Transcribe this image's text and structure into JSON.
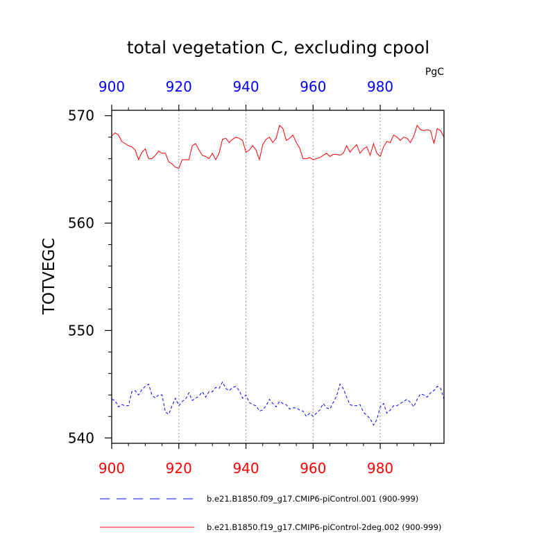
{
  "chart_data": {
    "type": "line",
    "title": "total vegetation C, excluding cpool",
    "units": "PgC",
    "ylabel": "TOTVEGC",
    "xlabel": "",
    "xlim": [
      900,
      999
    ],
    "ylim": [
      539.5,
      570.5
    ],
    "x_ticks": [
      900,
      920,
      940,
      960,
      980
    ],
    "x_tick_labels": [
      "900",
      "920",
      "940",
      "960",
      "980"
    ],
    "y_ticks": [
      540,
      550,
      560,
      570
    ],
    "y_tick_labels": [
      "540",
      "550",
      "560",
      "570"
    ],
    "grid": "vertical dotted at x ticks",
    "legend_position": "bottom",
    "colors": {
      "bottom_axis_labels": "#ff0000",
      "top_axis_labels": "#0000ff"
    },
    "series": [
      {
        "name": "b.e21.B1850.f09_g17.CMIP6-piControl.001 (900-999)",
        "color": "#0000ff",
        "dash": "dashed",
        "x": [
          900,
          901,
          902,
          903,
          904,
          905,
          906,
          907,
          908,
          909,
          910,
          911,
          912,
          913,
          914,
          915,
          916,
          917,
          918,
          919,
          920,
          921,
          922,
          923,
          924,
          925,
          926,
          927,
          928,
          929,
          930,
          931,
          932,
          933,
          934,
          935,
          936,
          937,
          938,
          939,
          940,
          941,
          942,
          943,
          944,
          945,
          946,
          947,
          948,
          949,
          950,
          951,
          952,
          953,
          954,
          955,
          956,
          957,
          958,
          959,
          960,
          961,
          962,
          963,
          964,
          965,
          966,
          967,
          968,
          969,
          970,
          971,
          972,
          973,
          974,
          975,
          976,
          977,
          978,
          979,
          980,
          981,
          982,
          983,
          984,
          985,
          986,
          987,
          988,
          989,
          990,
          991,
          992,
          993,
          994,
          995,
          996,
          997,
          998,
          999
        ],
        "y": [
          543.6,
          543.5,
          542.9,
          543.1,
          543.0,
          543.0,
          544.3,
          544.4,
          544.0,
          544.5,
          544.8,
          545.0,
          544.0,
          543.7,
          544.0,
          544.0,
          542.4,
          542.2,
          543.0,
          543.7,
          543.0,
          543.4,
          543.6,
          544.2,
          543.5,
          543.7,
          543.9,
          544.3,
          543.8,
          544.3,
          544.3,
          544.7,
          544.6,
          545.2,
          544.6,
          544.4,
          544.7,
          544.8,
          544.4,
          543.7,
          544.0,
          543.3,
          543.1,
          543.0,
          542.5,
          542.6,
          543.0,
          543.6,
          543.2,
          542.9,
          543.4,
          543.2,
          543.1,
          542.7,
          542.8,
          542.8,
          542.6,
          542.5,
          542.0,
          542.3,
          542.0,
          542.3,
          542.6,
          543.2,
          542.8,
          542.7,
          543.3,
          543.9,
          545.0,
          544.6,
          543.8,
          543.1,
          543.0,
          543.0,
          543.1,
          542.4,
          542.1,
          541.8,
          541.2,
          541.7,
          542.9,
          543.2,
          542.3,
          542.6,
          543.0,
          543.0,
          543.2,
          543.4,
          543.6,
          543.3,
          542.9,
          543.6,
          544.1,
          544.0,
          543.8,
          544.2,
          544.4,
          544.8,
          544.6,
          543.6
        ]
      },
      {
        "name": "b.e21.B1850.f19_g17.CMIP6-piControl-2deg.002 (900-999)",
        "color": "#ff0000",
        "dash": "solid",
        "x": [
          900,
          901,
          902,
          903,
          904,
          905,
          906,
          907,
          908,
          909,
          910,
          911,
          912,
          913,
          914,
          915,
          916,
          917,
          918,
          919,
          920,
          921,
          922,
          923,
          924,
          925,
          926,
          927,
          928,
          929,
          930,
          931,
          932,
          933,
          934,
          935,
          936,
          937,
          938,
          939,
          940,
          941,
          942,
          943,
          944,
          945,
          946,
          947,
          948,
          949,
          950,
          951,
          952,
          953,
          954,
          955,
          956,
          957,
          958,
          959,
          960,
          961,
          962,
          963,
          964,
          965,
          966,
          967,
          968,
          969,
          970,
          971,
          972,
          973,
          974,
          975,
          976,
          977,
          978,
          979,
          980,
          981,
          982,
          983,
          984,
          985,
          986,
          987,
          988,
          989,
          990,
          991,
          992,
          993,
          994,
          995,
          996,
          997,
          998,
          999
        ],
        "y": [
          568.1,
          568.4,
          568.2,
          567.6,
          567.4,
          567.2,
          567.1,
          566.8,
          565.9,
          566.6,
          566.9,
          566.0,
          566.0,
          566.3,
          566.7,
          566.5,
          566.5,
          565.7,
          565.5,
          565.2,
          565.1,
          565.9,
          565.9,
          565.9,
          567.2,
          567.4,
          566.8,
          566.3,
          566.2,
          566.0,
          566.5,
          565.9,
          566.5,
          567.8,
          567.9,
          567.5,
          567.8,
          568.0,
          567.9,
          567.7,
          566.6,
          566.8,
          567.2,
          566.8,
          565.9,
          567.3,
          567.8,
          568.0,
          567.5,
          567.9,
          569.1,
          568.8,
          567.7,
          567.9,
          568.2,
          567.5,
          567.0,
          566.0,
          566.0,
          566.1,
          565.9,
          566.0,
          566.1,
          566.3,
          566.5,
          566.2,
          566.4,
          566.4,
          566.3,
          566.5,
          567.2,
          566.6,
          567.0,
          567.3,
          566.5,
          566.9,
          567.1,
          566.3,
          567.4,
          566.5,
          566.2,
          567.1,
          567.6,
          567.5,
          568.2,
          568.0,
          567.7,
          568.0,
          567.9,
          567.5,
          568.1,
          569.1,
          568.7,
          568.6,
          568.7,
          568.6,
          567.4,
          568.8,
          568.6,
          568.0
        ]
      }
    ]
  }
}
